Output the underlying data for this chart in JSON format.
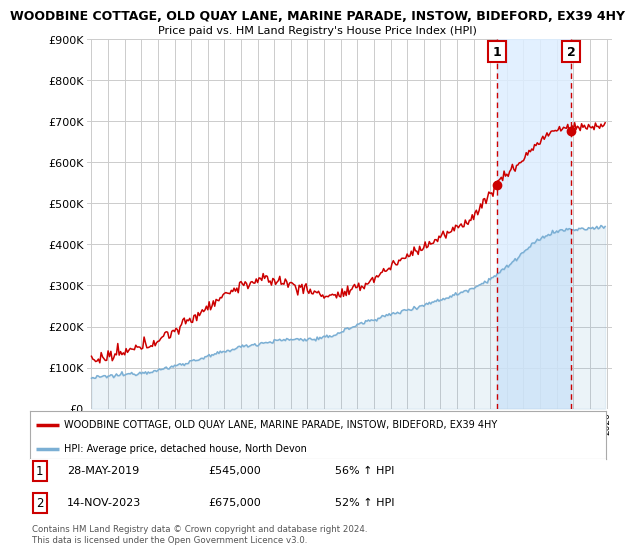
{
  "title": "WOODBINE COTTAGE, OLD QUAY LANE, MARINE PARADE, INSTOW, BIDEFORD, EX39 4HY",
  "subtitle": "Price paid vs. HM Land Registry's House Price Index (HPI)",
  "ylim": [
    0,
    900000
  ],
  "yticks": [
    0,
    100000,
    200000,
    300000,
    400000,
    500000,
    600000,
    700000,
    800000,
    900000
  ],
  "ytick_labels": [
    "£0",
    "£100K",
    "£200K",
    "£300K",
    "£400K",
    "£500K",
    "£600K",
    "£700K",
    "£800K",
    "£900K"
  ],
  "hpi_color": "#7bafd4",
  "price_color": "#cc0000",
  "sale1_date": 2019.42,
  "sale1_price": 545000,
  "sale2_date": 2023.87,
  "sale2_price": 675000,
  "vline_color": "#cc0000",
  "shade_color": "#ddeeff",
  "legend_property": "WOODBINE COTTAGE, OLD QUAY LANE, MARINE PARADE, INSTOW, BIDEFORD, EX39 4HY",
  "legend_hpi": "HPI: Average price, detached house, North Devon",
  "footer": "Contains HM Land Registry data © Crown copyright and database right 2024.\nThis data is licensed under the Open Government Licence v3.0.",
  "grid_color": "#cccccc",
  "background_color": "#ffffff",
  "xmin": 1995,
  "xmax": 2026
}
